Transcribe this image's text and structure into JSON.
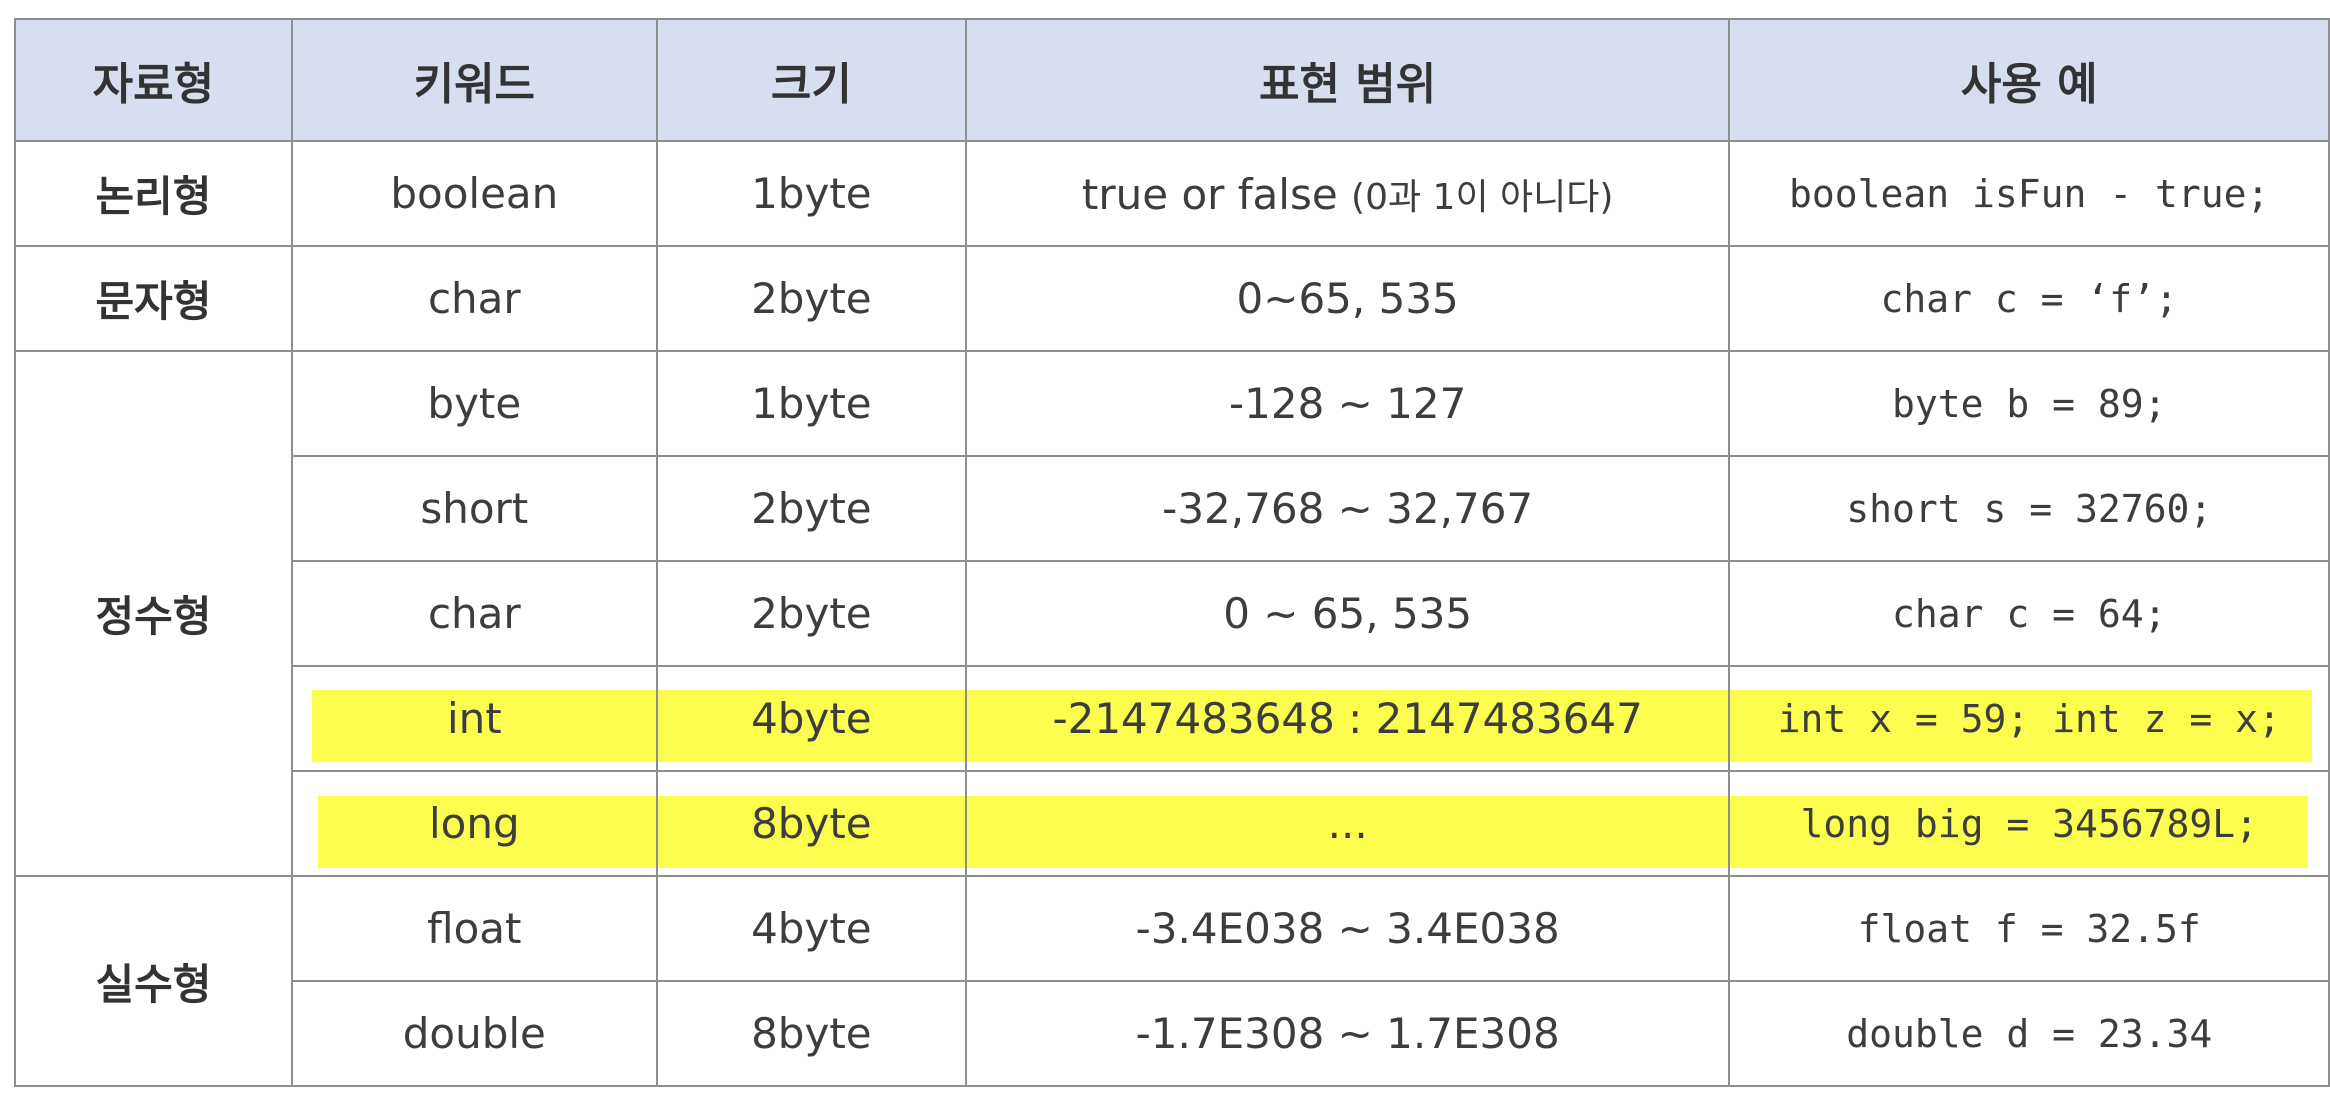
{
  "table": {
    "headers": [
      "자료형",
      "키워드",
      "크기",
      "표현 범위",
      "사용 예"
    ],
    "groups": [
      {
        "type": "논리형",
        "rows": [
          {
            "keyword": "boolean",
            "size": "1byte",
            "range_main": "true or false ",
            "range_note": "(0과 1이 아니다)",
            "example": "boolean isFun - true;"
          }
        ]
      },
      {
        "type": "문자형",
        "rows": [
          {
            "keyword": "char",
            "size": "2byte",
            "range": "0~65, 535",
            "example": "char c = ‘f’;"
          }
        ]
      },
      {
        "type": "정수형",
        "rows": [
          {
            "keyword": "byte",
            "size": "1byte",
            "range": "-128 ~ 127",
            "example": "byte b = 89;"
          },
          {
            "keyword": "short",
            "size": "2byte",
            "range": "-32,768 ~ 32,767",
            "example": "short s = 32760;"
          },
          {
            "keyword": "char",
            "size": "2byte",
            "range": "0 ~ 65, 535",
            "example": "char c = 64;"
          },
          {
            "keyword": "int",
            "size": "4byte",
            "range": "-2147483648 : 2147483647",
            "example": "int x = 59; int z = x;",
            "highlight": true
          },
          {
            "keyword": "long",
            "size": "8byte",
            "range": "...",
            "example": "long big = 3456789L;",
            "highlight": true
          }
        ]
      },
      {
        "type": "실수형",
        "rows": [
          {
            "keyword": "float",
            "size": "4byte",
            "range": "-3.4E038 ~ 3.4E038",
            "example": "float f = 32.5f"
          },
          {
            "keyword": "double",
            "size": "8byte",
            "range": "-1.7E308 ~ 1.7E308",
            "example": "double d = 23.34"
          }
        ]
      }
    ],
    "highlight_color": "#fbfd4f",
    "header_bg": "#d6deef"
  }
}
